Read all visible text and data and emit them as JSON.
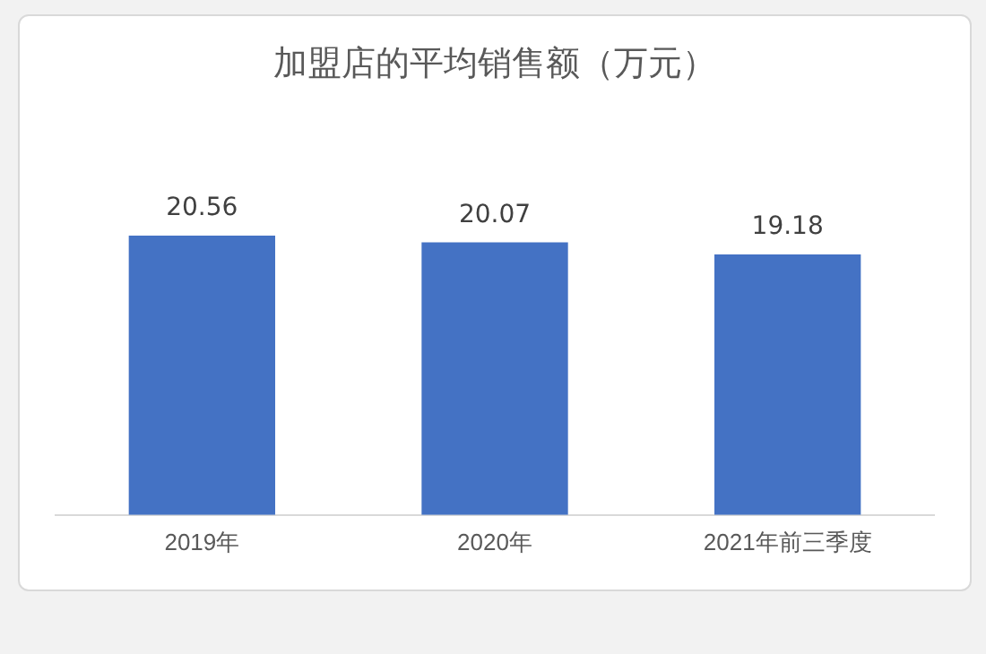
{
  "chart_data": {
    "type": "bar",
    "title": "加盟店的平均销售额（万元）",
    "categories": [
      "2019年",
      "2020年",
      "2021年前三季度"
    ],
    "values": [
      20.56,
      20.07,
      19.18
    ],
    "color": "#4472c4",
    "data_labels": true
  }
}
